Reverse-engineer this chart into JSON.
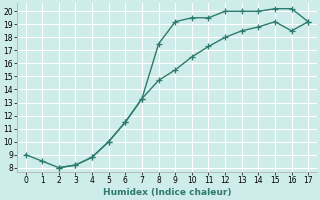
{
  "xlabel": "Humidex (Indice chaleur)",
  "background_color": "#ceecea",
  "line_color": "#2d7b6e",
  "xlim_min": -0.5,
  "xlim_max": 17.5,
  "ylim_min": 7.7,
  "ylim_max": 20.6,
  "xticks": [
    0,
    1,
    2,
    3,
    4,
    5,
    6,
    7,
    8,
    9,
    10,
    11,
    12,
    13,
    14,
    15,
    16,
    17
  ],
  "yticks": [
    8,
    9,
    10,
    11,
    12,
    13,
    14,
    15,
    16,
    17,
    18,
    19,
    20
  ],
  "upper_x": [
    0,
    1,
    2,
    3,
    4,
    5,
    6,
    7,
    8,
    9,
    10,
    11,
    12,
    13,
    14,
    15,
    16,
    17
  ],
  "upper_y": [
    9.0,
    8.5,
    8.0,
    8.2,
    8.8,
    10.0,
    11.5,
    13.3,
    17.5,
    19.2,
    19.5,
    19.5,
    20.0,
    20.0,
    20.0,
    20.2,
    20.2,
    19.2
  ],
  "lower_x": [
    2,
    3,
    4,
    5,
    6,
    7,
    8,
    9,
    10,
    11,
    12,
    13,
    14,
    15,
    16,
    17
  ],
  "lower_y": [
    8.0,
    8.2,
    8.8,
    10.0,
    11.5,
    13.3,
    14.7,
    15.5,
    16.5,
    17.3,
    18.0,
    18.5,
    18.8,
    19.2,
    18.5,
    19.2
  ],
  "marker_size": 4.5,
  "line_width": 1.0,
  "tick_fontsize": 5.5,
  "xlabel_fontsize": 6.5
}
